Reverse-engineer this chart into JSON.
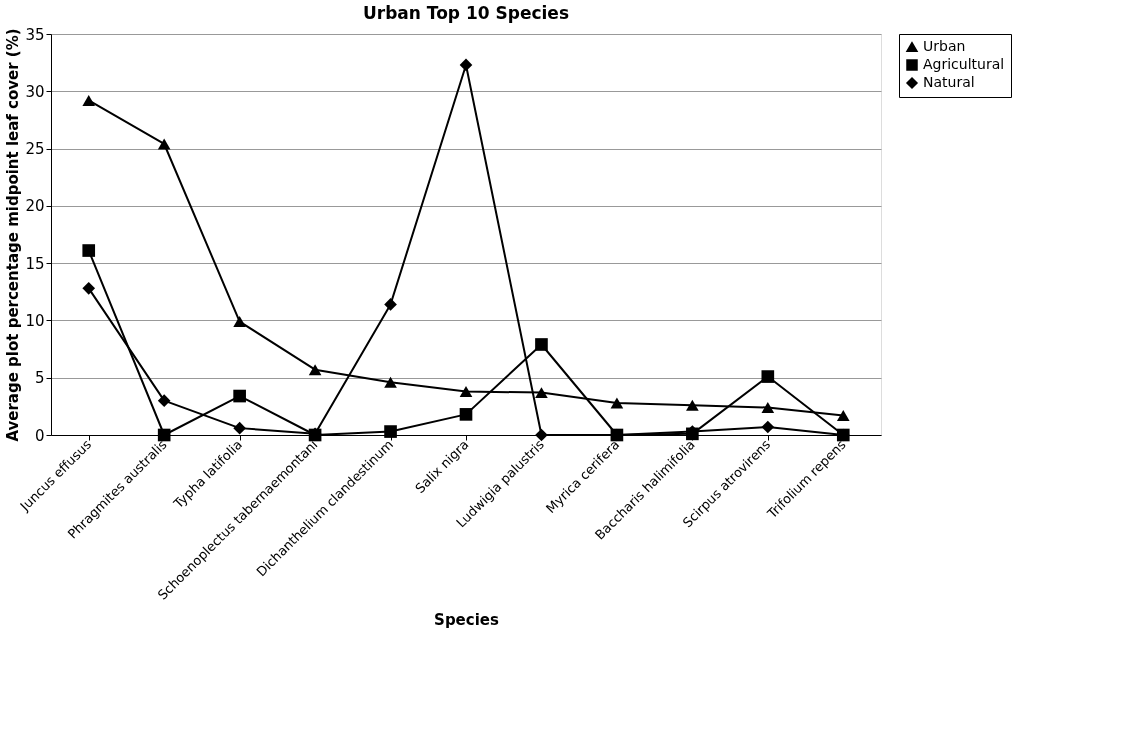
{
  "chart_data": {
    "type": "line",
    "title": "Urban Top 10 Species",
    "xlabel": "Species",
    "ylabel": "Average plot percentage midpoint leaf cover (%)",
    "categories": [
      "Juncus effusus",
      "Phragmites australis",
      "Typha latifolia",
      "Schoenoplectus tabernaemontani",
      "Dichanthelium clandestinum",
      "Salix nigra",
      "Ludwigia palustris",
      "Myrica cerifera",
      "Baccharis halimifolia",
      "Scirpus atrovirens",
      "Trifolium repens"
    ],
    "series": [
      {
        "name": "Urban",
        "color": "#000000",
        "marker": "triangle",
        "values": [
          29.2,
          25.4,
          9.9,
          5.7,
          4.6,
          3.8,
          3.7,
          2.8,
          2.6,
          2.4,
          1.7
        ]
      },
      {
        "name": "Agricultural",
        "color": "#000000",
        "marker": "square",
        "values": [
          16.1,
          0,
          3.4,
          0,
          0.3,
          1.8,
          7.9,
          0,
          0.1,
          5.1,
          0
        ]
      },
      {
        "name": "Natural",
        "color": "#000000",
        "marker": "diamond",
        "values": [
          12.8,
          3.0,
          0.6,
          0.1,
          11.4,
          32.3,
          0,
          0,
          0.3,
          0.7,
          0
        ]
      }
    ],
    "ylim": [
      0,
      35
    ],
    "yticks": [
      0,
      5,
      10,
      15,
      20,
      25,
      30,
      35
    ],
    "grid": "y",
    "legend": "right",
    "line_style": "solid"
  }
}
